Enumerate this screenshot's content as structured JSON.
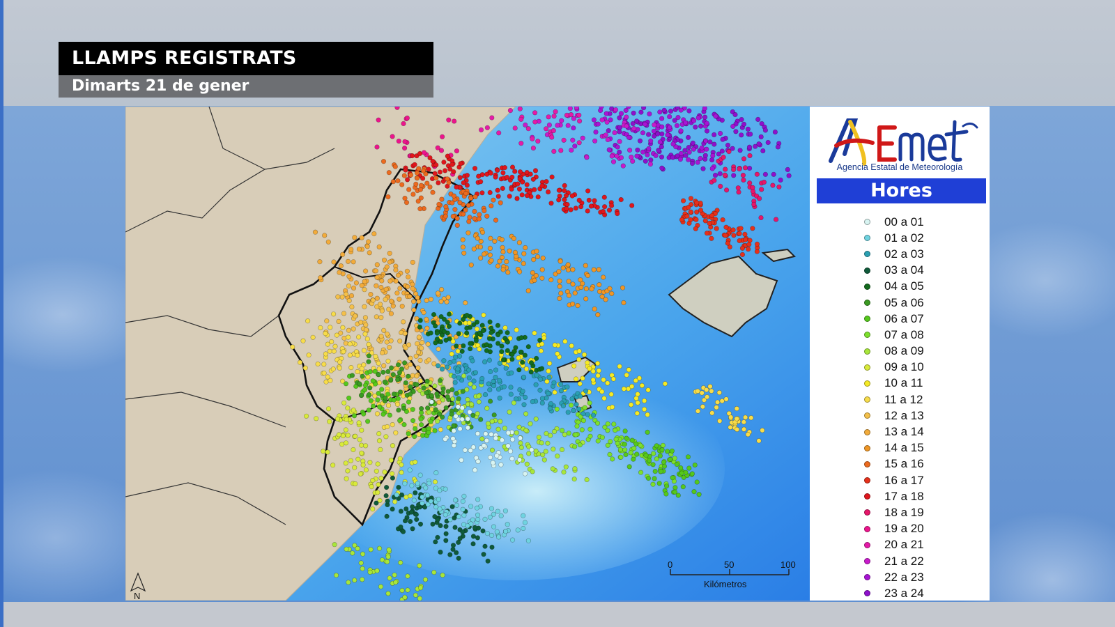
{
  "title": {
    "main": "LLAMPS REGISTRATS",
    "date": "Dimarts 21 de gener"
  },
  "logo": {
    "brand": "AEMet",
    "subtitle": "Agencia Estatal de Meteorología"
  },
  "legend": {
    "heading": "Hores",
    "items": [
      {
        "label": "00 a 01",
        "color": "#d8f4f2"
      },
      {
        "label": "01 a 02",
        "color": "#6fd3e0"
      },
      {
        "label": "02 a 03",
        "color": "#2aa0b2"
      },
      {
        "label": "03 a 04",
        "color": "#0f5a3a"
      },
      {
        "label": "04 a 05",
        "color": "#136b1e"
      },
      {
        "label": "05 a 06",
        "color": "#3a9a22"
      },
      {
        "label": "06 a 07",
        "color": "#55c81c"
      },
      {
        "label": "07 a 08",
        "color": "#7de02c"
      },
      {
        "label": "08 a 09",
        "color": "#a8e63a"
      },
      {
        "label": "09 a 10",
        "color": "#d9ea3a"
      },
      {
        "label": "10 a 11",
        "color": "#f5ea25"
      },
      {
        "label": "11 a 12",
        "color": "#f7dc4a"
      },
      {
        "label": "12 a 13",
        "color": "#f4c04a"
      },
      {
        "label": "13 a 14",
        "color": "#f2ab3a"
      },
      {
        "label": "14 a 15",
        "color": "#ef9626"
      },
      {
        "label": "15 a 16",
        "color": "#ec6a1e"
      },
      {
        "label": "16 a 17",
        "color": "#e6301a"
      },
      {
        "label": "17 a 18",
        "color": "#e0161c"
      },
      {
        "label": "18 a 19",
        "color": "#e6166a"
      },
      {
        "label": "19 a 20",
        "color": "#ec148c"
      },
      {
        "label": "20 a 21",
        "color": "#e51aa8"
      },
      {
        "label": "21 a 22",
        "color": "#c81acb"
      },
      {
        "label": "22 a 23",
        "color": "#a814d4"
      },
      {
        "label": "23 a 24",
        "color": "#8e10cc"
      }
    ]
  },
  "scale": {
    "ticks": [
      "0",
      "50",
      "100"
    ],
    "unit": "Kilómetros"
  },
  "north": "N"
}
